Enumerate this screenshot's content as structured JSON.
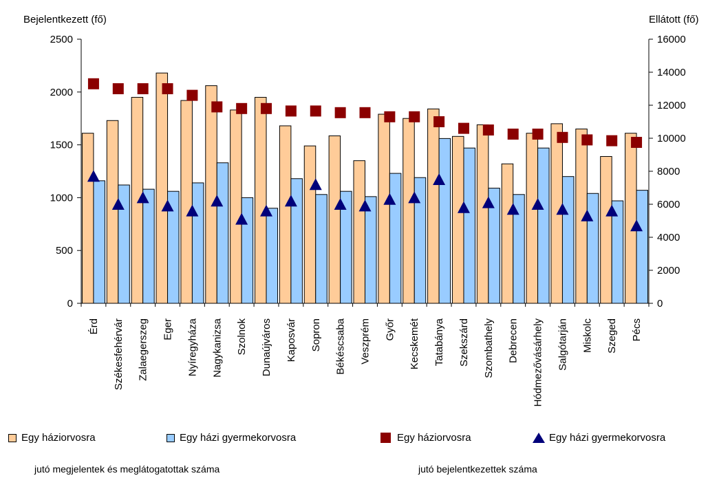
{
  "chart_data": {
    "type": "bar",
    "left_axis_title": "Bejelentkezett (fő)",
    "right_axis_title": "Ellátott (fő)",
    "ylim_left": [
      0,
      2500
    ],
    "yticks_left": [
      0,
      500,
      1000,
      1500,
      2000,
      2500
    ],
    "ylim_right": [
      0,
      16000
    ],
    "yticks_right": [
      0,
      2000,
      4000,
      6000,
      8000,
      10000,
      12000,
      14000,
      16000
    ],
    "categories": [
      "Érd",
      "Székesfehérvár",
      "Zalaegerszeg",
      "Eger",
      "Nyíregyháza",
      "Nagykanizsa",
      "Szolnok",
      "Dunaújváros",
      "Kaposvár",
      "Sopron",
      "Békéscsaba",
      "Veszprém",
      "Győr",
      "Kecskemét",
      "Tatabánya",
      "Szekszárd",
      "Szombathely",
      "Debrecen",
      "Hódmezővásárhely",
      "Salgótarján",
      "Miskolc",
      "Szeged",
      "Pécs"
    ],
    "series": [
      {
        "name": "Egy háziorvosra",
        "type": "bar",
        "axis": "left",
        "color": "#ffcc99",
        "values": [
          1610,
          1730,
          1950,
          2180,
          1920,
          2060,
          1830,
          1950,
          1680,
          1490,
          1585,
          1350,
          1790,
          1750,
          1840,
          1580,
          1690,
          1320,
          1610,
          1700,
          1650,
          1390,
          1610
        ]
      },
      {
        "name": "Egy házi gyermekorvosra",
        "type": "bar",
        "axis": "left",
        "color": "#99ccff",
        "values": [
          1160,
          1120,
          1080,
          1060,
          1140,
          1330,
          1000,
          900,
          1180,
          1030,
          1060,
          1010,
          1230,
          1190,
          1560,
          1470,
          1090,
          1030,
          1470,
          1200,
          1040,
          970,
          1070
        ]
      },
      {
        "name": "Egy háziorvosra",
        "type": "scatter",
        "marker": "square",
        "axis": "right",
        "color": "#8b0000",
        "values": [
          13300,
          13000,
          13000,
          13000,
          12600,
          11900,
          11800,
          11800,
          11650,
          11650,
          11550,
          11550,
          11300,
          11300,
          11000,
          10600,
          10500,
          10250,
          10250,
          10050,
          9900,
          9850,
          9750
        ]
      },
      {
        "name": "Egy házi gyermekorvosra",
        "type": "scatter",
        "marker": "triangle",
        "axis": "right",
        "color": "#00007a",
        "values": [
          7700,
          6000,
          6400,
          5900,
          5600,
          6200,
          5100,
          5600,
          6200,
          7200,
          6000,
          5900,
          6300,
          6400,
          7500,
          5800,
          6100,
          5700,
          6000,
          5700,
          5300,
          5600,
          4700
        ]
      }
    ],
    "grid": false,
    "legend_position": "bottom"
  },
  "legend": {
    "items": [
      {
        "label": "Egy háziorvosra",
        "color": "#ffcc99"
      },
      {
        "label": "Egy házi gyermekorvosra",
        "color": "#99ccff"
      },
      {
        "label": "Egy háziorvosra",
        "color": "#8b0000"
      },
      {
        "label": "Egy házi gyermekorvosra",
        "color": "#00007a"
      }
    ],
    "note_left": "jutó megjelentek és meglátogatottak száma",
    "note_right": "jutó bejelentkezettek  száma"
  }
}
